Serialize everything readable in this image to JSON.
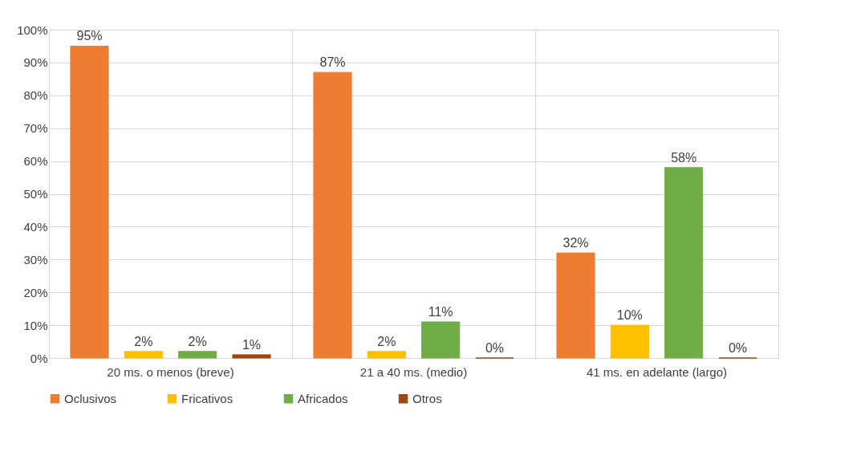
{
  "chart_data": {
    "type": "bar",
    "categories": [
      "20 ms. o menos (breve)",
      "21 a 40 ms. (medio)",
      "41 ms. en adelante (largo)"
    ],
    "series": [
      {
        "name": "Oclusivos",
        "color": "#ed7d31",
        "values": [
          95,
          87,
          32
        ],
        "value_labels": [
          "95%",
          "87%",
          "32%"
        ]
      },
      {
        "name": "Fricativos",
        "color": "#ffc000",
        "values": [
          2,
          2,
          10
        ],
        "value_labels": [
          "2%",
          "2%",
          "10%"
        ]
      },
      {
        "name": "Africados",
        "color": "#70ad47",
        "values": [
          2,
          11,
          58
        ],
        "value_labels": [
          "2%",
          "11%",
          "58%"
        ]
      },
      {
        "name": "Otros",
        "color": "#9e480e",
        "values": [
          1,
          0,
          0
        ],
        "value_labels": [
          "1%",
          "0%",
          "0%"
        ]
      }
    ],
    "ylim": [
      0,
      100
    ],
    "yticks": [
      {
        "value": 0,
        "label": "0%"
      },
      {
        "value": 10,
        "label": "10%"
      },
      {
        "value": 20,
        "label": "20%"
      },
      {
        "value": 30,
        "label": "30%"
      },
      {
        "value": 40,
        "label": "40%"
      },
      {
        "value": 50,
        "label": "50%"
      },
      {
        "value": 60,
        "label": "60%"
      },
      {
        "value": 70,
        "label": "70%"
      },
      {
        "value": 80,
        "label": "80%"
      },
      {
        "value": 90,
        "label": "90%"
      },
      {
        "value": 100,
        "label": "100%"
      }
    ],
    "grid": true,
    "legend": "bottom"
  }
}
